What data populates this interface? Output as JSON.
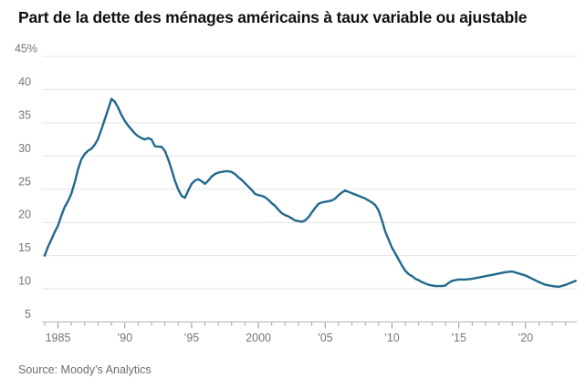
{
  "page": {
    "title": "Part de la dette des ménages américains à taux variable ou ajustable",
    "source": "Source: Moody’s Analytics"
  },
  "colors": {
    "line": "#20698c",
    "grid": "#e3e3e3",
    "axis": "#b5b5b5",
    "tick": "#8f8f8f",
    "label": "#757575",
    "title": "#101010"
  },
  "chart_data": {
    "type": "line",
    "title": "Part de la dette des ménages américains à taux variable ou ajustable",
    "source": "Source: Moody’s Analytics",
    "xlabel": "",
    "ylabel": "",
    "ylim": [
      5,
      45
    ],
    "xlim": [
      1983.9,
      2023.9
    ],
    "grid": "horizontal",
    "legend": "none",
    "yticks": [
      {
        "value": 45,
        "label": "45%"
      },
      {
        "value": 40,
        "label": "40"
      },
      {
        "value": 35,
        "label": "35"
      },
      {
        "value": 30,
        "label": "30"
      },
      {
        "value": 25,
        "label": "25"
      },
      {
        "value": 20,
        "label": "20"
      },
      {
        "value": 15,
        "label": "15"
      },
      {
        "value": 10,
        "label": "10"
      },
      {
        "value": 5,
        "label": "5"
      }
    ],
    "xticks": [
      {
        "value": 1985,
        "label": "1985"
      },
      {
        "value": 1990,
        "label": "’90"
      },
      {
        "value": 1995,
        "label": "’95"
      },
      {
        "value": 2000,
        "label": "2000"
      },
      {
        "value": 2005,
        "label": "’05"
      },
      {
        "value": 2010,
        "label": "’10"
      },
      {
        "value": 2015,
        "label": "’15"
      },
      {
        "value": 2020,
        "label": "’20"
      }
    ],
    "minor_xtick_step": 1,
    "series": [
      {
        "name": "share-of-household-debt-variable-rate",
        "x": [
          1984,
          1984.25,
          1984.5,
          1984.75,
          1985,
          1985.25,
          1985.5,
          1985.75,
          1986,
          1986.25,
          1986.5,
          1986.75,
          1987,
          1987.25,
          1987.5,
          1987.75,
          1988,
          1988.25,
          1988.5,
          1988.75,
          1989,
          1989.25,
          1989.5,
          1989.75,
          1990,
          1990.25,
          1990.5,
          1990.75,
          1991,
          1991.25,
          1991.5,
          1991.75,
          1992,
          1992.25,
          1992.5,
          1992.75,
          1993,
          1993.25,
          1993.5,
          1993.75,
          1994,
          1994.25,
          1994.5,
          1994.75,
          1995,
          1995.25,
          1995.5,
          1995.75,
          1996,
          1996.25,
          1996.5,
          1996.75,
          1997,
          1997.25,
          1997.5,
          1997.75,
          1998,
          1998.25,
          1998.5,
          1998.75,
          1999,
          1999.25,
          1999.5,
          1999.75,
          2000,
          2000.25,
          2000.5,
          2000.75,
          2001,
          2001.25,
          2001.5,
          2001.75,
          2002,
          2002.25,
          2002.5,
          2002.75,
          2003,
          2003.25,
          2003.5,
          2003.75,
          2004,
          2004.25,
          2004.5,
          2004.75,
          2005,
          2005.25,
          2005.5,
          2005.75,
          2006,
          2006.25,
          2006.5,
          2006.75,
          2007,
          2007.25,
          2007.5,
          2007.75,
          2008,
          2008.25,
          2008.5,
          2008.75,
          2009,
          2009.25,
          2009.5,
          2009.75,
          2010,
          2010.25,
          2010.5,
          2010.75,
          2011,
          2011.25,
          2011.5,
          2011.75,
          2012,
          2012.25,
          2012.5,
          2012.75,
          2013,
          2013.25,
          2013.5,
          2013.75,
          2014,
          2014.25,
          2014.5,
          2014.75,
          2015,
          2015.5,
          2016,
          2016.5,
          2017,
          2017.5,
          2018,
          2018.5,
          2019,
          2019.5,
          2020,
          2020.5,
          2021,
          2021.5,
          2022,
          2022.5,
          2023,
          2023.5,
          2023.75
        ],
        "y": [
          15.0,
          16.3,
          17.4,
          18.5,
          19.5,
          21.0,
          22.3,
          23.2,
          24.3,
          26.0,
          28.0,
          29.5,
          30.3,
          30.8,
          31.1,
          31.7,
          32.6,
          34.0,
          35.5,
          37.0,
          38.6,
          38.2,
          37.3,
          36.2,
          35.3,
          34.6,
          34.0,
          33.4,
          33.0,
          32.7,
          32.5,
          32.7,
          32.5,
          31.5,
          31.4,
          31.4,
          30.8,
          29.5,
          28.0,
          26.3,
          25.0,
          24.0,
          23.7,
          24.8,
          25.8,
          26.3,
          26.5,
          26.2,
          25.8,
          26.3,
          26.9,
          27.3,
          27.5,
          27.6,
          27.7,
          27.7,
          27.6,
          27.3,
          26.8,
          26.4,
          25.9,
          25.4,
          24.9,
          24.3,
          24.1,
          24.0,
          23.8,
          23.4,
          22.9,
          22.5,
          21.9,
          21.4,
          21.1,
          20.9,
          20.6,
          20.3,
          20.2,
          20.1,
          20.3,
          20.8,
          21.5,
          22.2,
          22.8,
          23.0,
          23.1,
          23.2,
          23.3,
          23.6,
          24.1,
          24.5,
          24.8,
          24.6,
          24.4,
          24.2,
          24.0,
          23.8,
          23.6,
          23.3,
          23.0,
          22.6,
          21.8,
          20.3,
          18.6,
          17.4,
          16.2,
          15.3,
          14.4,
          13.5,
          12.7,
          12.2,
          11.9,
          11.5,
          11.3,
          11.0,
          10.8,
          10.6,
          10.5,
          10.4,
          10.4,
          10.4,
          10.5,
          10.9,
          11.2,
          11.3,
          11.4,
          11.4,
          11.5,
          11.7,
          11.9,
          12.1,
          12.3,
          12.5,
          12.6,
          12.3,
          12.0,
          11.5,
          11.0,
          10.6,
          10.4,
          10.3,
          10.6,
          11.0,
          11.2
        ]
      }
    ]
  }
}
